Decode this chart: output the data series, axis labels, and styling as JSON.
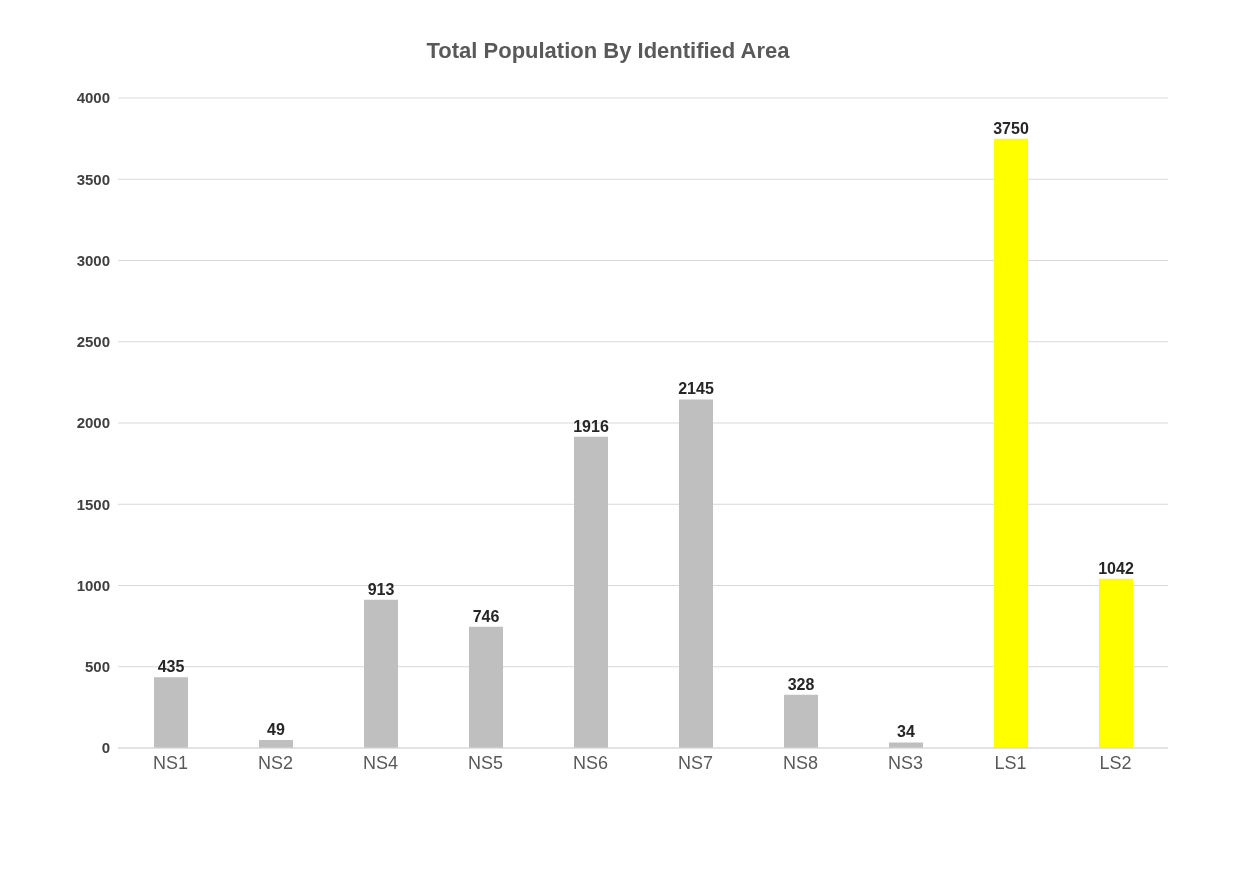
{
  "chart_data": {
    "type": "bar",
    "title": "Total Population By Identified Area",
    "categories": [
      "NS1",
      "NS2",
      "NS4",
      "NS5",
      "NS6",
      "NS7",
      "NS8",
      "NS3",
      "LS1",
      "LS2"
    ],
    "values": [
      435,
      49,
      913,
      746,
      1916,
      2145,
      328,
      34,
      3750,
      1042
    ],
    "colors": [
      "#bfbfbf",
      "#bfbfbf",
      "#bfbfbf",
      "#bfbfbf",
      "#bfbfbf",
      "#bfbfbf",
      "#bfbfbf",
      "#bfbfbf",
      "#ffff00",
      "#ffff00"
    ],
    "ylim": [
      0,
      4000
    ],
    "yticks": [
      0,
      500,
      1000,
      1500,
      2000,
      2500,
      3000,
      3500,
      4000
    ],
    "grid": "y",
    "data_labels": true
  }
}
